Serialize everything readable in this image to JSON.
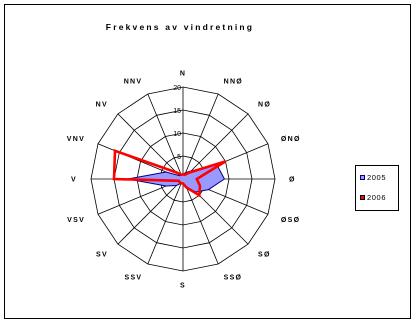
{
  "chart_data": {
    "type": "radar",
    "title": "Frekvens av vindretning",
    "directions": [
      "N",
      "NNØ",
      "NØ",
      "ØNØ",
      "Ø",
      "ØSØ",
      "SØ",
      "SSØ",
      "S",
      "SSV",
      "SV",
      "VSV",
      "V",
      "VNV",
      "NV",
      "NNV"
    ],
    "rlim": [
      0,
      20
    ],
    "ticks": [
      5,
      10,
      15,
      20
    ],
    "tick_labels": [
      "5",
      "10",
      "15",
      "20"
    ],
    "series": [
      {
        "name": "2005",
        "color": "#9999ff",
        "edge": "#000080",
        "values": [
          1,
          1.5,
          2.5,
          8,
          9,
          6,
          4,
          2,
          1,
          1,
          2,
          4,
          12,
          4,
          1,
          1
        ]
      },
      {
        "name": "2006",
        "color": "#ff0000",
        "values": [
          1,
          1,
          2,
          10,
          3,
          4,
          5,
          2,
          1,
          1,
          1,
          1,
          15,
          16,
          2,
          1
        ]
      }
    ],
    "legend": "right"
  }
}
